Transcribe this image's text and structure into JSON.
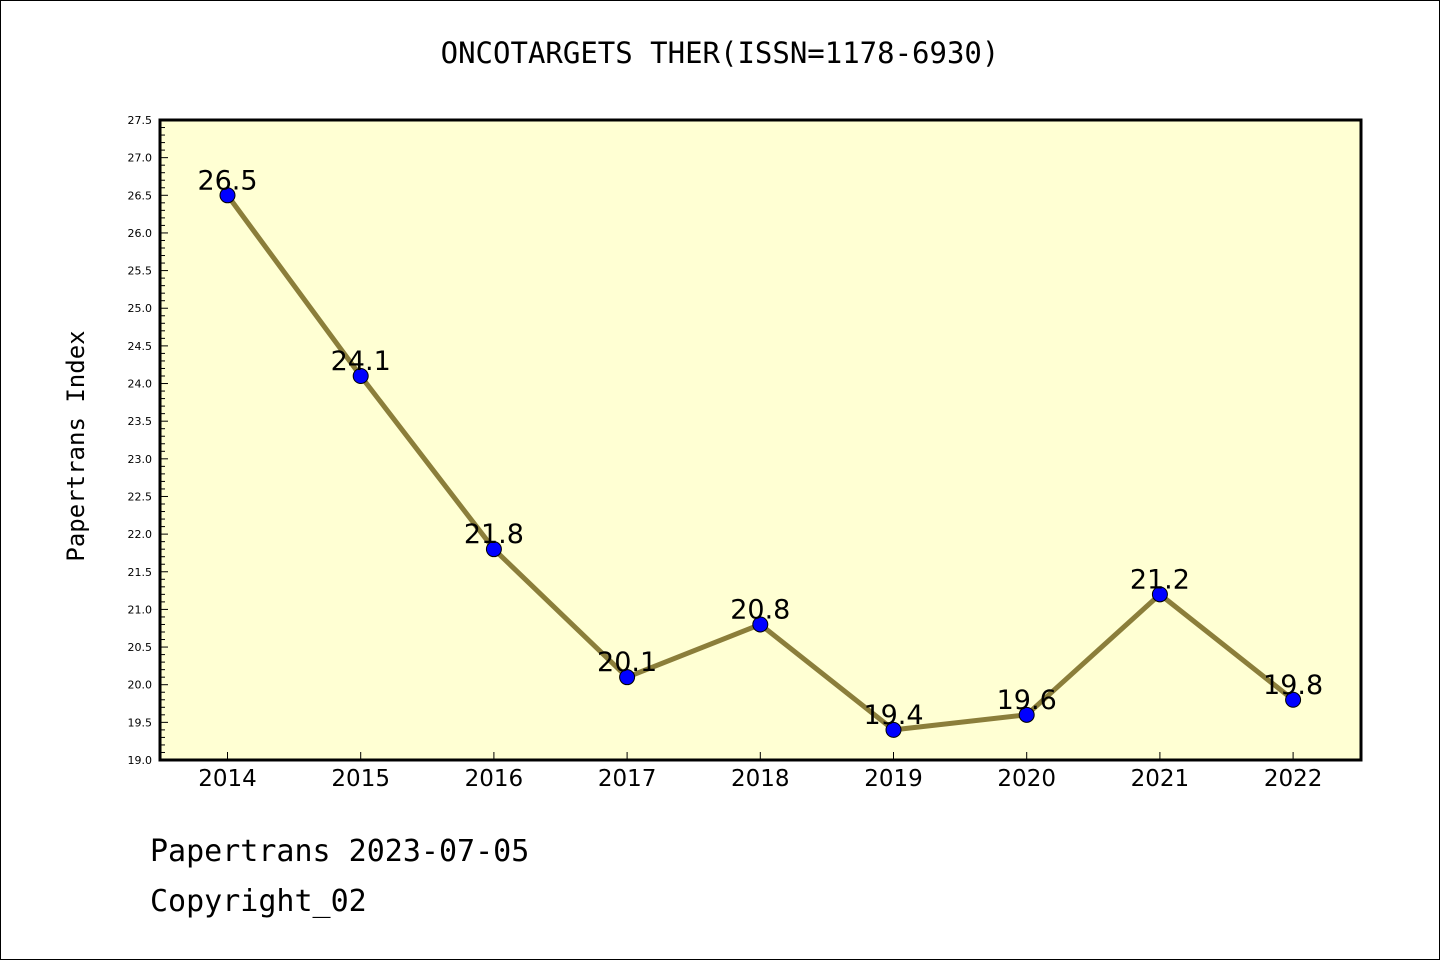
{
  "chart_data": {
    "type": "line",
    "title": "ONCOTARGETS THER(ISSN=1178-6930)",
    "xlabel": "",
    "ylabel": "Papertrans Index",
    "categories": [
      "2014",
      "2015",
      "2016",
      "2017",
      "2018",
      "2019",
      "2020",
      "2021",
      "2022"
    ],
    "series": [
      {
        "values": [
          26.5,
          24.1,
          21.8,
          20.1,
          20.8,
          19.4,
          19.6,
          21.2,
          19.8
        ]
      }
    ],
    "data_labels": [
      "26.5",
      "24.1",
      "21.8",
      "20.1",
      "20.8",
      "19.4",
      "19.6",
      "21.2",
      "19.8"
    ],
    "ylim": [
      19.0,
      27.5
    ],
    "yticks": [
      "19.0",
      "19.5",
      "20.0",
      "20.5",
      "21.0",
      "21.5",
      "22.0",
      "22.5",
      "23.0",
      "23.5",
      "24.0",
      "24.5",
      "25.0",
      "25.5",
      "26.0",
      "26.5",
      "27.0",
      "27.5"
    ],
    "grid": false,
    "colors": {
      "background": "#ffffd3",
      "line": "#8b7e3a",
      "marker": "#0000ff",
      "frame": "#000000"
    }
  },
  "footer": {
    "line1": "Papertrans 2023-07-05",
    "line2": "Copyright_02"
  }
}
